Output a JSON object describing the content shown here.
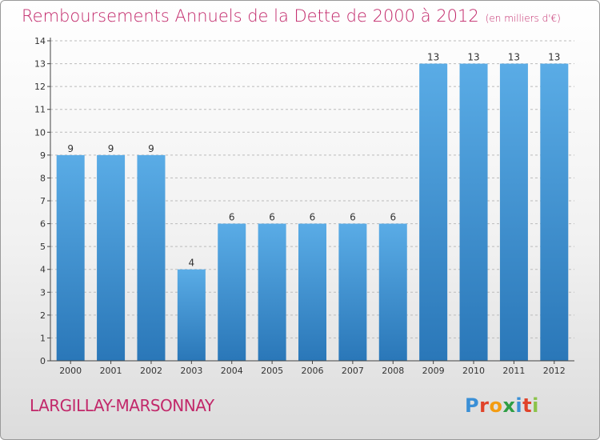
{
  "title": "Remboursements Annuels de la Dette de 2000 à 2012",
  "unit": "(en milliers d'€)",
  "location": "LARGILLAY-MARSONNAY",
  "logo": {
    "text": "Proxiti",
    "letter_colors": [
      "#3a8fd6",
      "#e0432a",
      "#f39c12",
      "#2f9e44",
      "#3a8fd6",
      "#e0432a",
      "#8bc34a"
    ]
  },
  "colors": {
    "title": "#c2286a",
    "bar_top": "#5aace6",
    "bar_bottom": "#2a77b8",
    "grid": "#bbbbbb",
    "axis": "#444444",
    "label": "#333333"
  },
  "chart_data": {
    "type": "bar",
    "categories": [
      "2000",
      "2001",
      "2002",
      "2003",
      "2004",
      "2005",
      "2006",
      "2007",
      "2008",
      "2009",
      "2010",
      "2011",
      "2012"
    ],
    "values": [
      9,
      9,
      9,
      4,
      6,
      6,
      6,
      6,
      6,
      13,
      13,
      13,
      13
    ],
    "data_labels": [
      "9",
      "9",
      "9",
      "4",
      "6",
      "6",
      "6",
      "6",
      "6",
      "13",
      "13",
      "13",
      "13"
    ],
    "ylim": [
      0,
      14
    ],
    "yticks": [
      0,
      1,
      2,
      3,
      4,
      5,
      6,
      7,
      8,
      9,
      10,
      11,
      12,
      13,
      14
    ],
    "grid": true,
    "grid_style": "dashed-horizontal",
    "xlabel": "",
    "ylabel": ""
  }
}
